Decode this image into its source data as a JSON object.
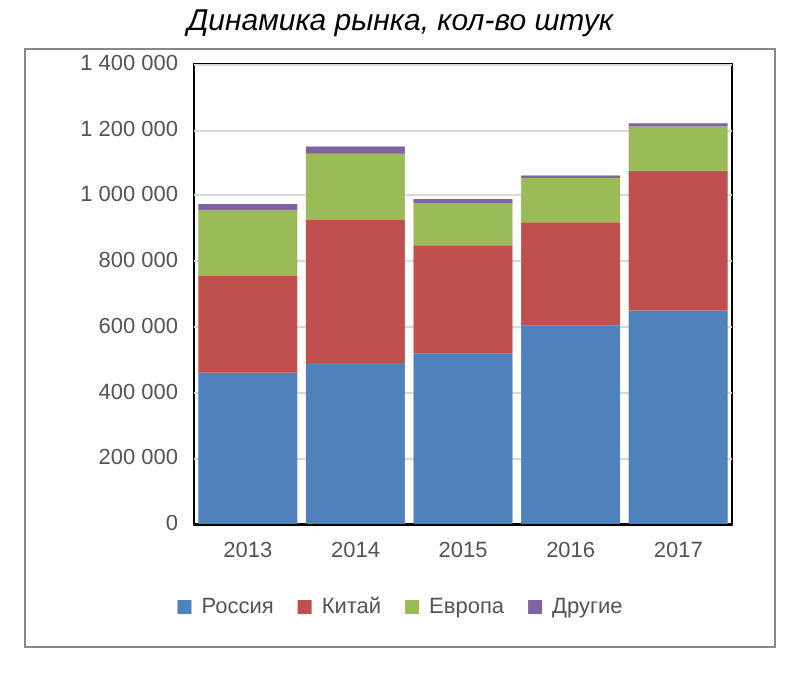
{
  "chart_data": {
    "type": "bar",
    "title": "Динамика рынка, кол-во штук",
    "categories": [
      "2013",
      "2014",
      "2015",
      "2016",
      "2017"
    ],
    "stacked": true,
    "series": [
      {
        "name": "Россия",
        "color": "#4f81bd",
        "values": [
          460000,
          490000,
          520000,
          605000,
          650000
        ]
      },
      {
        "name": "Китай",
        "color": "#c0504d",
        "values": [
          295000,
          435000,
          328000,
          313000,
          425000
        ]
      },
      {
        "name": "Европа",
        "color": "#9bbb59",
        "values": [
          200000,
          202000,
          129000,
          135000,
          135000
        ]
      },
      {
        "name": "Другие",
        "color": "#8064a2",
        "values": [
          19000,
          22000,
          12000,
          8000,
          10000
        ]
      }
    ],
    "ylim": [
      0,
      1400000
    ],
    "yticks": [
      {
        "value": 0,
        "label": "0"
      },
      {
        "value": 200000,
        "label": "200 000"
      },
      {
        "value": 400000,
        "label": "400 000"
      },
      {
        "value": 600000,
        "label": "600 000"
      },
      {
        "value": 800000,
        "label": "800 000"
      },
      {
        "value": 1000000,
        "label": "1 000 000"
      },
      {
        "value": 1200000,
        "label": "1 200 000"
      },
      {
        "value": 1400000,
        "label": "1 400 000"
      }
    ],
    "grid": "y",
    "legend": "bottom"
  }
}
